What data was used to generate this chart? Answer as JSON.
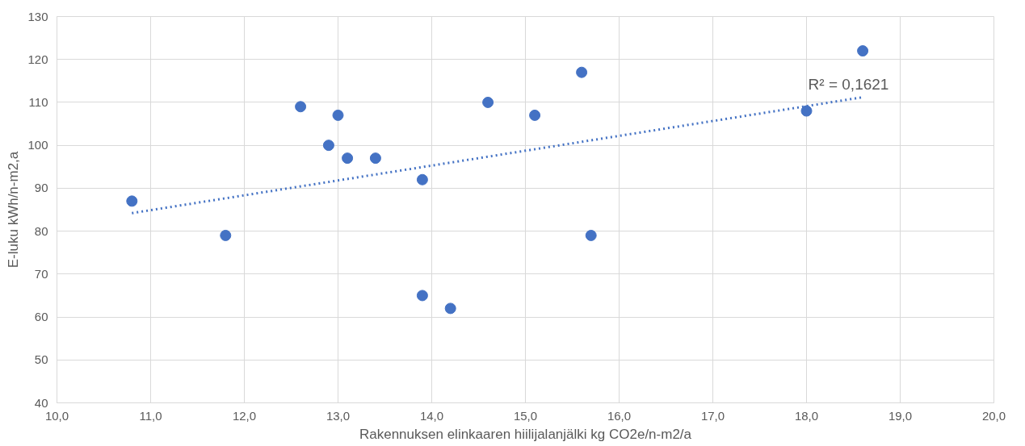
{
  "chart_data": {
    "type": "scatter",
    "xlabel": "Rakennuksen elinkaaren hiilijalanjälki kg CO2e/n-m2/a",
    "ylabel": "E-luku kWh/n-m2,a",
    "x": [
      10.8,
      11.8,
      12.6,
      12.9,
      13.0,
      13.1,
      13.4,
      13.9,
      13.9,
      14.2,
      14.6,
      15.1,
      15.6,
      15.7,
      18.0,
      18.6
    ],
    "series": [
      {
        "color": "#4472c4",
        "marker": "circle",
        "values": [
          87,
          79,
          109,
          100,
          107,
          97,
          97,
          92,
          65,
          62,
          110,
          107,
          117,
          79,
          108,
          122
        ]
      },
      {
        "type": "line",
        "color": "#4472c4",
        "line_style": "dotted",
        "marker": "none",
        "x": [
          10.8,
          18.6
        ],
        "values": [
          84.2,
          111.2
        ]
      }
    ],
    "annotations": [
      "R² = 0,1621"
    ],
    "xlim": [
      10,
      20
    ],
    "xticks": [
      {
        "value": 10,
        "label": "10,0"
      },
      {
        "value": 11,
        "label": "11,0"
      },
      {
        "value": 12,
        "label": "12,0"
      },
      {
        "value": 13,
        "label": "13,0"
      },
      {
        "value": 14,
        "label": "14,0"
      },
      {
        "value": 15,
        "label": "15,0"
      },
      {
        "value": 16,
        "label": "16,0"
      },
      {
        "value": 17,
        "label": "17,0"
      },
      {
        "value": 18,
        "label": "18,0"
      },
      {
        "value": 19,
        "label": "19,0"
      },
      {
        "value": 20,
        "label": "20,0"
      }
    ],
    "ylim": [
      40,
      130
    ],
    "yticks": [
      40,
      50,
      60,
      70,
      80,
      90,
      100,
      110,
      120,
      130
    ],
    "grid": true
  }
}
